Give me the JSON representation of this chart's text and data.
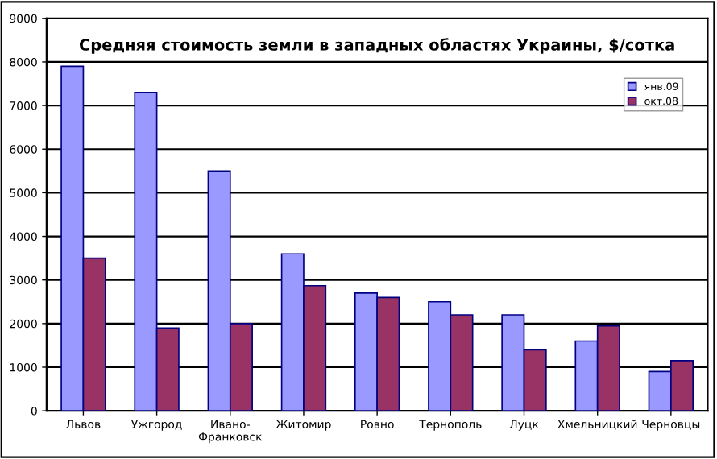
{
  "chart_data": {
    "type": "bar",
    "title": "Средняя стоимость земли в западных областях Украины, $/сотка",
    "categories": [
      "Львов",
      "Ужгород",
      "Ивано-\nФранковск",
      "Житомир",
      "Ровно",
      "Тернополь",
      "Луцк",
      "Хмельницкий",
      "Черновцы"
    ],
    "series": [
      {
        "name": "янв.09",
        "color": "#9999ff",
        "values": [
          7900,
          7300,
          5500,
          3600,
          2700,
          2500,
          2200,
          1600,
          900
        ]
      },
      {
        "name": "окт.08",
        "color": "#993366",
        "values": [
          3500,
          1900,
          2000,
          2870,
          2600,
          2200,
          1400,
          1950,
          1150
        ]
      }
    ],
    "ylim": [
      0,
      9000
    ],
    "yticks": [
      0,
      1000,
      2000,
      3000,
      4000,
      5000,
      6000,
      7000,
      8000,
      9000
    ],
    "grid": "y",
    "legend": "top right"
  }
}
